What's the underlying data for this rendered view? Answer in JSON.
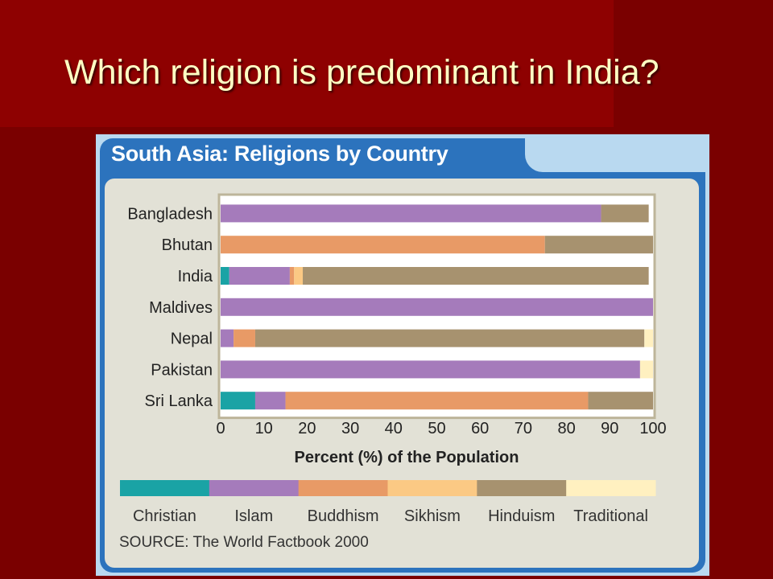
{
  "slide": {
    "title": "Which religion is predominant in India?"
  },
  "colors": {
    "slide_bg": "#7a0000",
    "title_text": "#ffffc4",
    "panel_blue": "#2c73bd",
    "panel_bg": "#e2e1d6"
  },
  "source": "SOURCE: The World Factbook 2000",
  "chart_data": {
    "type": "bar",
    "orientation": "horizontal",
    "stacked": true,
    "title": "South Asia: Religions by Country",
    "xlabel": "Percent (%) of the Population",
    "ylabel": "",
    "xlim": [
      0,
      100
    ],
    "x_ticks": [
      0,
      10,
      20,
      30,
      40,
      50,
      60,
      70,
      80,
      90,
      100
    ],
    "grid": false,
    "legend_position": "bottom",
    "categories": [
      "Bangladesh",
      "Bhutan",
      "India",
      "Maldives",
      "Nepal",
      "Pakistan",
      "Sri Lanka"
    ],
    "series": [
      {
        "name": "Christian",
        "color": "#1aa3a5",
        "values": [
          0,
          0,
          2,
          0,
          0,
          0,
          8
        ]
      },
      {
        "name": "Islam",
        "color": "#a57bbb",
        "values": [
          88,
          0,
          14,
          100,
          3,
          97,
          7
        ]
      },
      {
        "name": "Buddhism",
        "color": "#e89a66",
        "values": [
          0,
          75,
          1,
          0,
          5,
          0,
          70
        ]
      },
      {
        "name": "Sikhism",
        "color": "#fbc984",
        "values": [
          0,
          0,
          2,
          0,
          0,
          0,
          0
        ]
      },
      {
        "name": "Hinduism",
        "color": "#a7926f",
        "values": [
          11,
          25,
          80,
          0,
          90,
          0,
          15
        ]
      },
      {
        "name": "Traditional",
        "color": "#fff0c0",
        "values": [
          0,
          0,
          0,
          0,
          2,
          3,
          0
        ]
      }
    ]
  }
}
